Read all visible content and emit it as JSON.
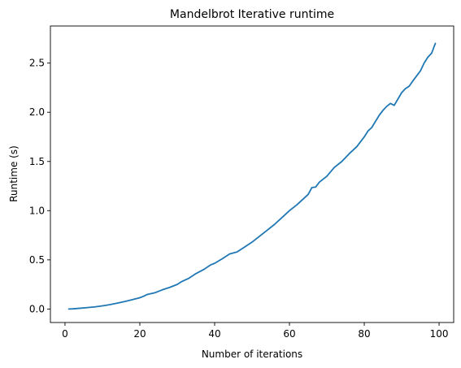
{
  "chart_data": {
    "type": "line",
    "title": "Mandelbrot Iterative runtime",
    "xlabel": "Number of iterations",
    "ylabel": "Runtime (s)",
    "xlim": [
      -3.9,
      103.9
    ],
    "ylim": [
      -0.137,
      2.877
    ],
    "xticks": [
      0,
      20,
      40,
      60,
      80,
      100
    ],
    "xtick_labels": [
      "0",
      "20",
      "40",
      "60",
      "80",
      "100"
    ],
    "yticks": [
      0.0,
      0.5,
      1.0,
      1.5,
      2.0,
      2.5
    ],
    "ytick_labels": [
      "0.0",
      "0.5",
      "1.0",
      "1.5",
      "2.0",
      "2.5"
    ],
    "grid": false,
    "colors": {
      "line": "#1f77b4"
    },
    "series": [
      {
        "x": [
          1,
          2,
          4,
          6,
          8,
          10,
          12,
          14,
          16,
          18,
          20,
          21,
          22,
          24,
          26,
          28,
          30,
          31,
          33,
          35,
          37,
          39,
          40,
          42,
          44,
          45,
          46,
          48,
          50,
          52,
          54,
          56,
          58,
          60,
          62,
          64,
          65,
          66,
          67,
          68,
          70,
          71,
          72,
          74,
          76,
          78,
          80,
          81,
          82,
          84,
          85,
          86,
          87,
          88,
          90,
          91,
          92,
          93,
          94,
          95,
          96,
          97,
          98,
          99
        ],
        "y": [
          0.0,
          0.002,
          0.008,
          0.015,
          0.022,
          0.032,
          0.045,
          0.06,
          0.077,
          0.095,
          0.115,
          0.13,
          0.148,
          0.165,
          0.195,
          0.22,
          0.25,
          0.275,
          0.31,
          0.36,
          0.4,
          0.45,
          0.465,
          0.51,
          0.56,
          0.57,
          0.58,
          0.63,
          0.68,
          0.74,
          0.8,
          0.86,
          0.93,
          1.0,
          1.06,
          1.13,
          1.165,
          1.235,
          1.24,
          1.29,
          1.35,
          1.395,
          1.44,
          1.5,
          1.58,
          1.65,
          1.75,
          1.81,
          1.845,
          1.97,
          2.02,
          2.06,
          2.09,
          2.07,
          2.2,
          2.24,
          2.265,
          2.32,
          2.37,
          2.42,
          2.5,
          2.56,
          2.6,
          2.7
        ]
      }
    ]
  }
}
